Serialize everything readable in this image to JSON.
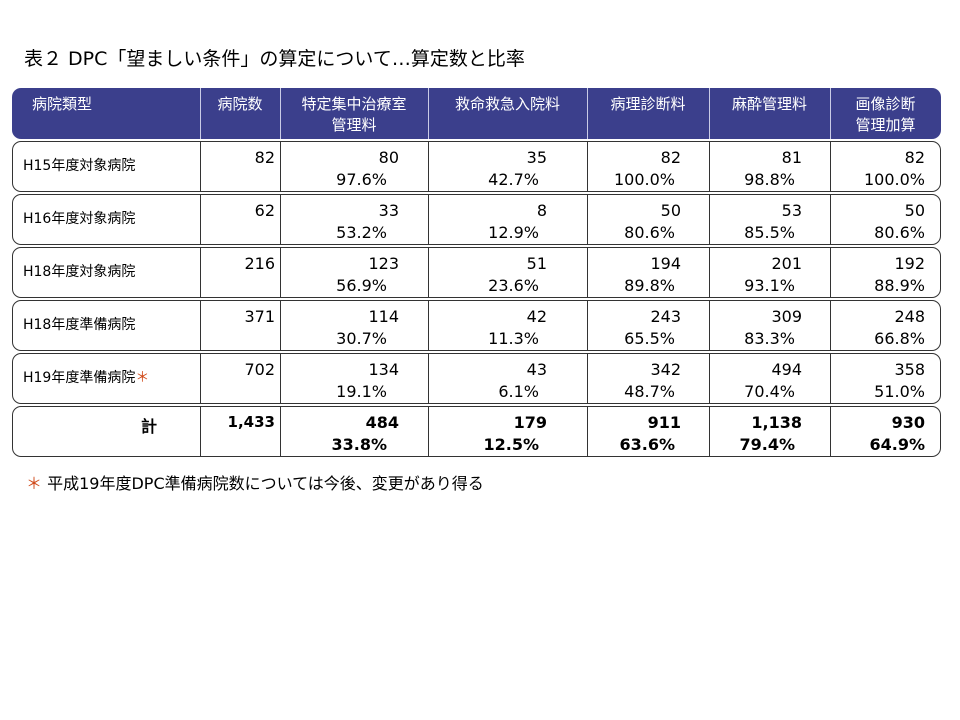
{
  "title": "表２ DPC「望ましい条件」の算定について…算定数と比率",
  "headers": [
    "病院類型",
    "病院数",
    "特定集中治療室\n管理料",
    "救命救急入院料",
    "病理診断料",
    "麻酔管理料",
    "画像診断\n管理加算"
  ],
  "rows": [
    {
      "name": "H15年度対象病院",
      "marker": "",
      "count": "82",
      "cells": [
        [
          "80",
          "97.6%"
        ],
        [
          "35",
          "42.7%"
        ],
        [
          "82",
          "100.0%"
        ],
        [
          "81",
          "98.8%"
        ],
        [
          "82",
          "100.0%"
        ]
      ]
    },
    {
      "name": "H16年度対象病院",
      "marker": "",
      "count": "62",
      "cells": [
        [
          "33",
          "53.2%"
        ],
        [
          "8",
          "12.9%"
        ],
        [
          "50",
          "80.6%"
        ],
        [
          "53",
          "85.5%"
        ],
        [
          "50",
          "80.6%"
        ]
      ]
    },
    {
      "name": "H18年度対象病院",
      "marker": "",
      "count": "216",
      "cells": [
        [
          "123",
          "56.9%"
        ],
        [
          "51",
          "23.6%"
        ],
        [
          "194",
          "89.8%"
        ],
        [
          "201",
          "93.1%"
        ],
        [
          "192",
          "88.9%"
        ]
      ]
    },
    {
      "name": "H18年度準備病院",
      "marker": "",
      "count": "371",
      "cells": [
        [
          "114",
          "30.7%"
        ],
        [
          "42",
          "11.3%"
        ],
        [
          "243",
          "65.5%"
        ],
        [
          "309",
          "83.3%"
        ],
        [
          "248",
          "66.8%"
        ]
      ]
    },
    {
      "name": "H19年度準備病院",
      "marker": "＊",
      "count": "702",
      "cells": [
        [
          "134",
          "19.1%"
        ],
        [
          "43",
          "6.1%"
        ],
        [
          "342",
          "48.7%"
        ],
        [
          "494",
          "70.4%"
        ],
        [
          "358",
          "51.0%"
        ]
      ]
    },
    {
      "name": "計",
      "marker": "",
      "count": "1,433",
      "cells": [
        [
          "484",
          "33.8%"
        ],
        [
          "179",
          "12.5%"
        ],
        [
          "911",
          "63.6%"
        ],
        [
          "1,138",
          "79.4%"
        ],
        [
          "930",
          "64.9%"
        ]
      ]
    }
  ],
  "footnote": {
    "marker": "＊",
    "text": "平成19年度DPC準備病院数については今後、変更があり得る"
  },
  "colors": {
    "header_bg": "#3b3f8c",
    "marker": "#d04a1a"
  }
}
